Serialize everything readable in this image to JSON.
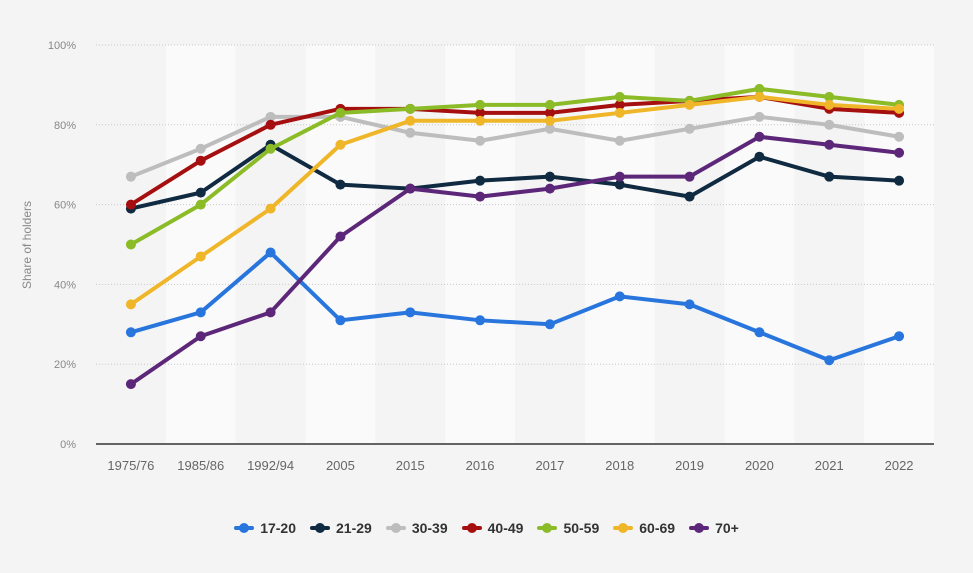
{
  "chart_data": {
    "type": "line",
    "title": "",
    "xlabel": "",
    "ylabel": "Share of holders",
    "ylim": [
      0,
      100
    ],
    "yticks": [
      "0%",
      "20%",
      "40%",
      "60%",
      "80%",
      "100%"
    ],
    "ytick_values": [
      0,
      20,
      40,
      60,
      80,
      100
    ],
    "grid": true,
    "legend_position": "bottom",
    "categories": [
      "1975/76",
      "1985/86",
      "1992/94",
      "2005",
      "2015",
      "2016",
      "2017",
      "2018",
      "2019",
      "2020",
      "2021",
      "2022"
    ],
    "series": [
      {
        "name": "17-20",
        "color": "#2876dd",
        "values": [
          28,
          33,
          48,
          31,
          33,
          31,
          30,
          37,
          35,
          28,
          21,
          27
        ]
      },
      {
        "name": "21-29",
        "color": "#0f2a41",
        "values": [
          59,
          63,
          75,
          65,
          64,
          66,
          67,
          65,
          62,
          72,
          67,
          66
        ]
      },
      {
        "name": "30-39",
        "color": "#bdbdbd",
        "values": [
          67,
          74,
          82,
          82,
          78,
          76,
          79,
          76,
          79,
          82,
          80,
          77
        ]
      },
      {
        "name": "40-49",
        "color": "#a50f0f",
        "values": [
          60,
          71,
          80,
          84,
          84,
          83,
          83,
          85,
          86,
          87,
          84,
          83
        ]
      },
      {
        "name": "50-59",
        "color": "#8bbb27",
        "values": [
          50,
          60,
          74,
          83,
          84,
          85,
          85,
          87,
          86,
          89,
          87,
          85
        ]
      },
      {
        "name": "60-69",
        "color": "#f0b629",
        "values": [
          35,
          47,
          59,
          75,
          81,
          81,
          81,
          83,
          85,
          87,
          85,
          84
        ]
      },
      {
        "name": "70+",
        "color": "#5d2779",
        "values": [
          15,
          27,
          33,
          52,
          64,
          62,
          64,
          67,
          67,
          77,
          75,
          73
        ]
      }
    ]
  }
}
